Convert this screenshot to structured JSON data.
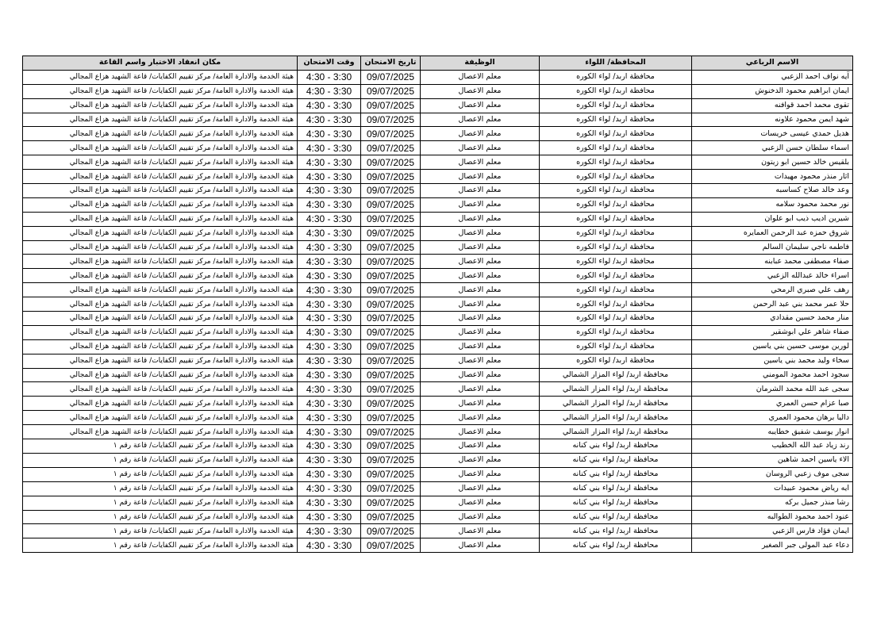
{
  "table": {
    "headers": [
      "الاسم الرباعي",
      "المحافظة/ اللواء",
      "الوظيفة",
      "تاريخ الامتحان",
      "وقت الامتحان",
      "مكان انعقاد الاختبار واسم القاعة"
    ],
    "rows": [
      [
        "آيه نواف احمد الزعبي",
        "محافظة اربد/ لواء الكوره",
        "معلم الاعصال",
        "09/07/2025",
        "4:30 - 3:30",
        "هيئة الخدمة والادارة العامة/ مركز تقييم الكفايات/ قاعة الشهيد هزاع المجالي"
      ],
      [
        "ايمان ابراهيم محمود الدخنوش",
        "محافظة اربد/ لواء الكوره",
        "معلم الاعصال",
        "09/07/2025",
        "4:30 - 3:30",
        "هيئة الخدمة والادارة العامة/ مركز تقييم الكفايات/ قاعة الشهيد هزاع المجالي"
      ],
      [
        "تقوى محمد احمد قوافنه",
        "محافظة اربد/ لواء الكوره",
        "معلم الاعصال",
        "09/07/2025",
        "4:30 - 3:30",
        "هيئة الخدمة والادارة العامة/ مركز تقييم الكفايات/ قاعة الشهيد هزاع المجالي"
      ],
      [
        "شهد ايمن محمود علاونه",
        "محافظة اربد/ لواء الكوره",
        "معلم الاعصال",
        "09/07/2025",
        "4:30 - 3:30",
        "هيئة الخدمة والادارة العامة/ مركز تقييم الكفايات/ قاعة الشهيد هزاع المجالي"
      ],
      [
        "هديل حمدي عيسى خريسات",
        "محافظة اربد/ لواء الكوره",
        "معلم الاعصال",
        "09/07/2025",
        "4:30 - 3:30",
        "هيئة الخدمة والادارة العامة/ مركز تقييم الكفايات/ قاعة الشهيد هزاع المجالي"
      ],
      [
        "اسماء سلطان حسن الزعبي",
        "محافظة اربد/ لواء الكوره",
        "معلم الاعصال",
        "09/07/2025",
        "4:30 - 3:30",
        "هيئة الخدمة والادارة العامة/ مركز تقييم الكفايات/ قاعة الشهيد هزاع المجالي"
      ],
      [
        "بلقيس خالد حسين ابو زيتون",
        "محافظة اربد/ لواء الكوره",
        "معلم الاعصال",
        "09/07/2025",
        "4:30 - 3:30",
        "هيئة الخدمة والادارة العامة/ مركز تقييم الكفايات/ قاعة الشهيد هزاع المجالي"
      ],
      [
        "اثار منذر محمود مهيدات",
        "محافظة اربد/ لواء الكوره",
        "معلم الاعصال",
        "09/07/2025",
        "4:30 - 3:30",
        "هيئة الخدمة والادارة العامة/ مركز تقييم الكفايات/ قاعة الشهيد هزاع المجالي"
      ],
      [
        "وعد خالد صلاح كساسبه",
        "محافظة اربد/ لواء الكوره",
        "معلم الاعصال",
        "09/07/2025",
        "4:30 - 3:30",
        "هيئة الخدمة والادارة العامة/ مركز تقييم الكفايات/ قاعة الشهيد هزاع المجالي"
      ],
      [
        "نور محمد محمود سلامه",
        "محافظة اربد/ لواء الكوره",
        "معلم الاعصال",
        "09/07/2025",
        "4:30 - 3:30",
        "هيئة الخدمة والادارة العامة/ مركز تقييم الكفايات/ قاعة الشهيد هزاع المجالي"
      ],
      [
        "شيرين اديب ذيب ابو علوان",
        "محافظة اربد/ لواء الكوره",
        "معلم الاعصال",
        "09/07/2025",
        "4:30 - 3:30",
        "هيئة الخدمة والادارة العامة/ مركز تقييم الكفايات/ قاعة الشهيد هزاع المجالي"
      ],
      [
        "شروق حمزه عبد الرحمن العمايره",
        "محافظة اربد/ لواء الكوره",
        "معلم الاعصال",
        "09/07/2025",
        "4:30 - 3:30",
        "هيئة الخدمة والادارة العامة/ مركز تقييم الكفايات/ قاعة الشهيد هزاع المجالي"
      ],
      [
        "فاطمه ناجي سليمان السالم",
        "محافظة اربد/ لواء الكوره",
        "معلم الاعصال",
        "09/07/2025",
        "4:30 - 3:30",
        "هيئة الخدمة والادارة العامة/ مركز تقييم الكفايات/ قاعة الشهيد هزاع المجالي"
      ],
      [
        "صفاء مصطفى محمد عبابنه",
        "محافظة اربد/ لواء الكوره",
        "معلم الاعصال",
        "09/07/2025",
        "4:30 - 3:30",
        "هيئة الخدمة والادارة العامة/ مركز تقييم الكفايات/ قاعة الشهيد هزاع المجالي"
      ],
      [
        "اسراء خالد عبدالله الزعبي",
        "محافظة اربد/ لواء الكوره",
        "معلم الاعصال",
        "09/07/2025",
        "4:30 - 3:30",
        "هيئة الخدمة والادارة العامة/ مركز تقييم الكفايات/ قاعة الشهيد هزاع المجالي"
      ],
      [
        "رهف علي صبري الرمحي",
        "محافظة اربد/ لواء الكوره",
        "معلم الاعصال",
        "09/07/2025",
        "4:30 - 3:30",
        "هيئة الخدمة والادارة العامة/ مركز تقييم الكفايات/ قاعة الشهيد هزاع المجالي"
      ],
      [
        "حلا عمر محمد بني عبد الرحمن",
        "محافظة اربد/ لواء الكوره",
        "معلم الاعصال",
        "09/07/2025",
        "4:30 - 3:30",
        "هيئة الخدمة والادارة العامة/ مركز تقييم الكفايات/ قاعة الشهيد هزاع المجالي"
      ],
      [
        "منار محمد حسين مقدادي",
        "محافظة اربد/ لواء الكوره",
        "معلم الاعصال",
        "09/07/2025",
        "4:30 - 3:30",
        "هيئة الخدمة والادارة العامة/ مركز تقييم الكفايات/ قاعة الشهيد هزاع المجالي"
      ],
      [
        "صفاء شاهر علي ابوشقير",
        "محافظة اربد/ لواء الكوره",
        "معلم الاعصال",
        "09/07/2025",
        "4:30 - 3:30",
        "هيئة الخدمة والادارة العامة/ مركز تقييم الكفايات/ قاعة الشهيد هزاع المجالي"
      ],
      [
        "لورين موسى حسين بني ياسين",
        "محافظة اربد/ لواء الكوره",
        "معلم الاعصال",
        "09/07/2025",
        "4:30 - 3:30",
        "هيئة الخدمة والادارة العامة/ مركز تقييم الكفايات/ قاعة الشهيد هزاع المجالي"
      ],
      [
        "سخاء وليد محمد بني ياسين",
        "محافظة اربد/ لواء الكوره",
        "معلم الاعصال",
        "09/07/2025",
        "4:30 - 3:30",
        "هيئة الخدمة والادارة العامة/ مركز تقييم الكفايات/ قاعة الشهيد هزاع المجالي"
      ],
      [
        "سجود احمد محمود المومني",
        "محافظة اربد/ لواء المزار الشمالي",
        "معلم الاعصال",
        "09/07/2025",
        "4:30 - 3:30",
        "هيئة الخدمة والادارة العامة/ مركز تقييم الكفايات/ قاعة الشهيد هزاع المجالي"
      ],
      [
        "سجى عبد الله محمد الشرمان",
        "محافظة اربد/ لواء المزار الشمالي",
        "معلم الاعصال",
        "09/07/2025",
        "4:30 - 3:30",
        "هيئة الخدمة والادارة العامة/ مركز تقييم الكفايات/ قاعة الشهيد هزاع المجالي"
      ],
      [
        "صبا عزام حسن العمري",
        "محافظة اربد/ لواء المزار الشمالي",
        "معلم الاعصال",
        "09/07/2025",
        "4:30 - 3:30",
        "هيئة الخدمة والادارة العامة/ مركز تقييم الكفايات/ قاعة الشهيد هزاع المجالي"
      ],
      [
        "داليا برهان محمود العمري",
        "محافظة اربد/ لواء المزار الشمالي",
        "معلم الاعصال",
        "09/07/2025",
        "4:30 - 3:30",
        "هيئة الخدمة والادارة العامة/ مركز تقييم الكفايات/ قاعة الشهيد هزاع المجالي"
      ],
      [
        "انوار يوسف شفيق خطايبه",
        "محافظة اربد/ لواء المزار الشمالي",
        "معلم الاعصال",
        "09/07/2025",
        "4:30 - 3:30",
        "هيئة الخدمة والادارة العامة/ مركز تقييم الكفايات/ قاعة الشهيد هزاع المجالي"
      ],
      [
        "رند زياد عبد الله الخطيب",
        "محافظة اربد/ لواء بني كنانه",
        "معلم الاعصال",
        "09/07/2025",
        "4:30 - 3:30",
        "هيئة الخدمة والادارة العامة/ مركز تقييم الكفايات/ قاعة رقم ١"
      ],
      [
        "الاء ياسين احمد شاهين",
        "محافظة اربد/ لواء بني كنانه",
        "معلم الاعصال",
        "09/07/2025",
        "4:30 - 3:30",
        "هيئة الخدمة والادارة العامة/ مركز تقييم الكفايات/ قاعة رقم ١"
      ],
      [
        "سجى موف زعبي الروسان",
        "محافظة اربد/ لواء بني كنانه",
        "معلم الاعصال",
        "09/07/2025",
        "4:30 - 3:30",
        "هيئة الخدمة والادارة العامة/ مركز تقييم الكفايات/ قاعة رقم ١"
      ],
      [
        "ايه رياض محمود عبيدات",
        "محافظة اربد/ لواء بني كنانه",
        "معلم الاعصال",
        "09/07/2025",
        "4:30 - 3:30",
        "هيئة الخدمة والادارة العامة/ مركز تقييم الكفايات/ قاعة رقم ١"
      ],
      [
        "رشا منذر جميل بركه",
        "محافظة اربد/ لواء بني كنانه",
        "معلم الاعصال",
        "09/07/2025",
        "4:30 - 3:30",
        "هيئة الخدمة والادارة العامة/ مركز تقييم الكفايات/ قاعة رقم ١"
      ],
      [
        "عنود احمد محمود الطوالبه",
        "محافظة اربد/ لواء بني كنانه",
        "معلم الاعصال",
        "09/07/2025",
        "4:30 - 3:30",
        "هيئة الخدمة والادارة العامة/ مركز تقييم الكفايات/ قاعة رقم ١"
      ],
      [
        "ايمان فؤاد فارس الزعبي",
        "محافظة اربد/ لواء بني كنانه",
        "معلم الاعصال",
        "09/07/2025",
        "4:30 - 3:30",
        "هيئة الخدمة والادارة العامة/ مركز تقييم الكفايات/ قاعة رقم ١"
      ],
      [
        "دعاء عبد المولى جبر الصغير",
        "محافظة اربد/ لواء بني كنانه",
        "معلم الاعصال",
        "09/07/2025",
        "4:30 - 3:30",
        "هيئة الخدمة والادارة العامة/ مركز تقييم الكفايات/ قاعة رقم ١"
      ]
    ]
  }
}
